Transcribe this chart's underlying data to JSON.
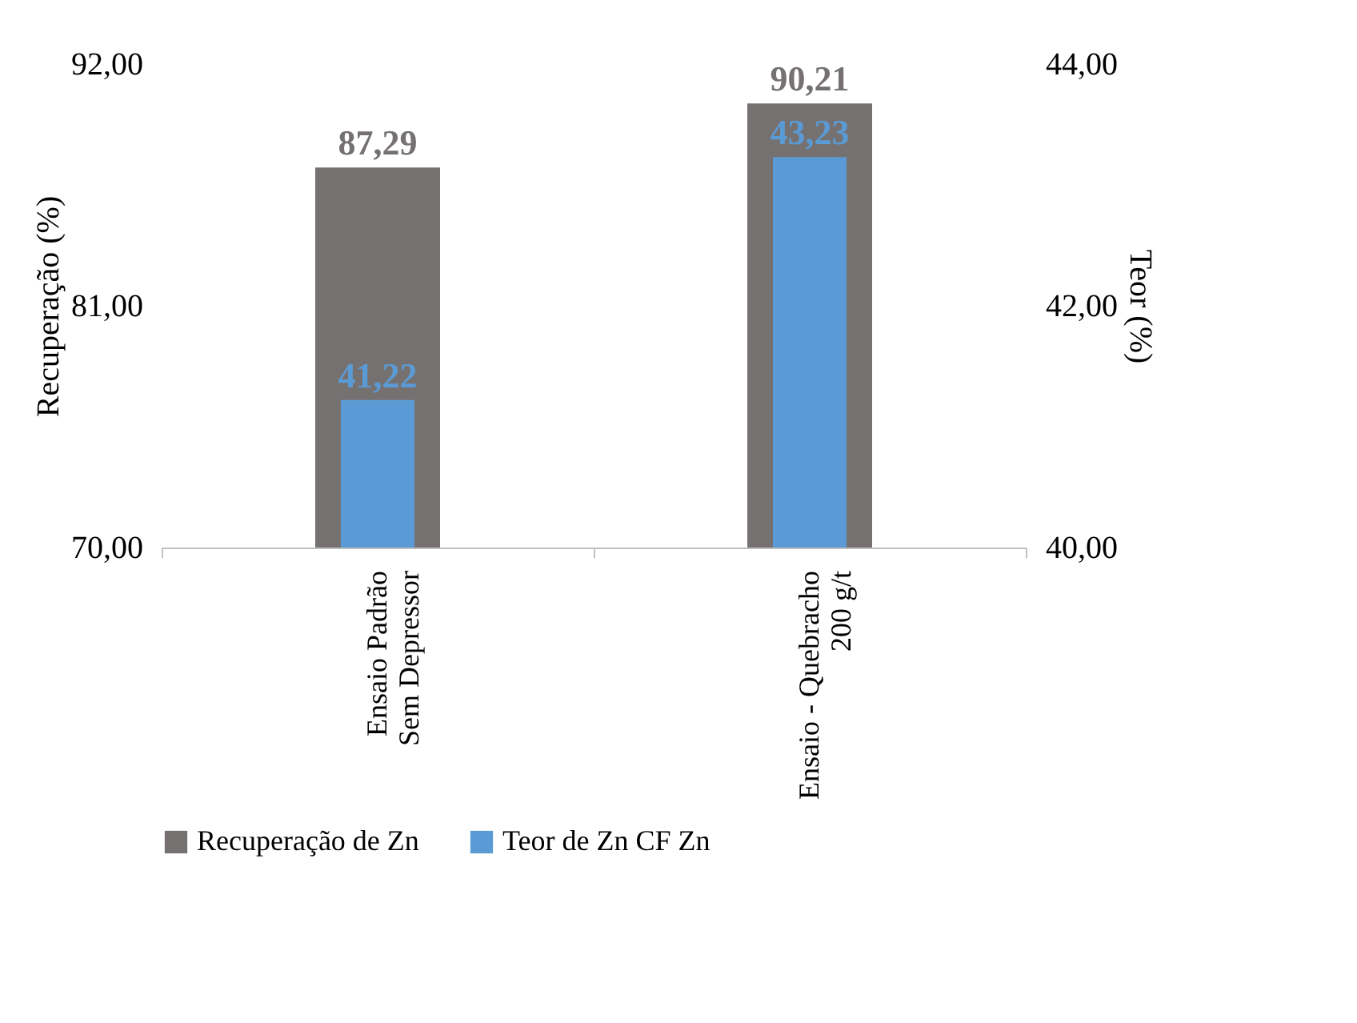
{
  "chart_data": {
    "type": "bar",
    "categories": [
      "Ensaio Padrão\nSem Depressor",
      "Ensaio - Quebracho\n200 g/t"
    ],
    "series": [
      {
        "name": "Recuperação de Zn",
        "color": "#767171",
        "values": [
          87.29,
          90.21
        ],
        "value_labels": [
          "87,29",
          "90,21"
        ],
        "axis": "y"
      },
      {
        "name": "Teor de Zn CF Zn",
        "color": "#5b9bd5",
        "values": [
          41.22,
          43.23
        ],
        "value_labels": [
          "41,22",
          "43,23"
        ],
        "axis": "y2"
      }
    ],
    "ylabel": "Recuperação (%)",
    "y2label": "Teor (%)",
    "ylim": [
      70,
      92
    ],
    "yticks": [
      {
        "value": 70,
        "label": "70,00"
      },
      {
        "value": 81,
        "label": "81,00"
      },
      {
        "value": 92,
        "label": "92,00"
      }
    ],
    "y2lim": [
      40,
      44
    ],
    "y2ticks": [
      {
        "value": 40,
        "label": "40,00"
      },
      {
        "value": 42,
        "label": "42,00"
      },
      {
        "value": 44,
        "label": "44,00"
      }
    ],
    "grid": false,
    "legend": "bottom"
  }
}
